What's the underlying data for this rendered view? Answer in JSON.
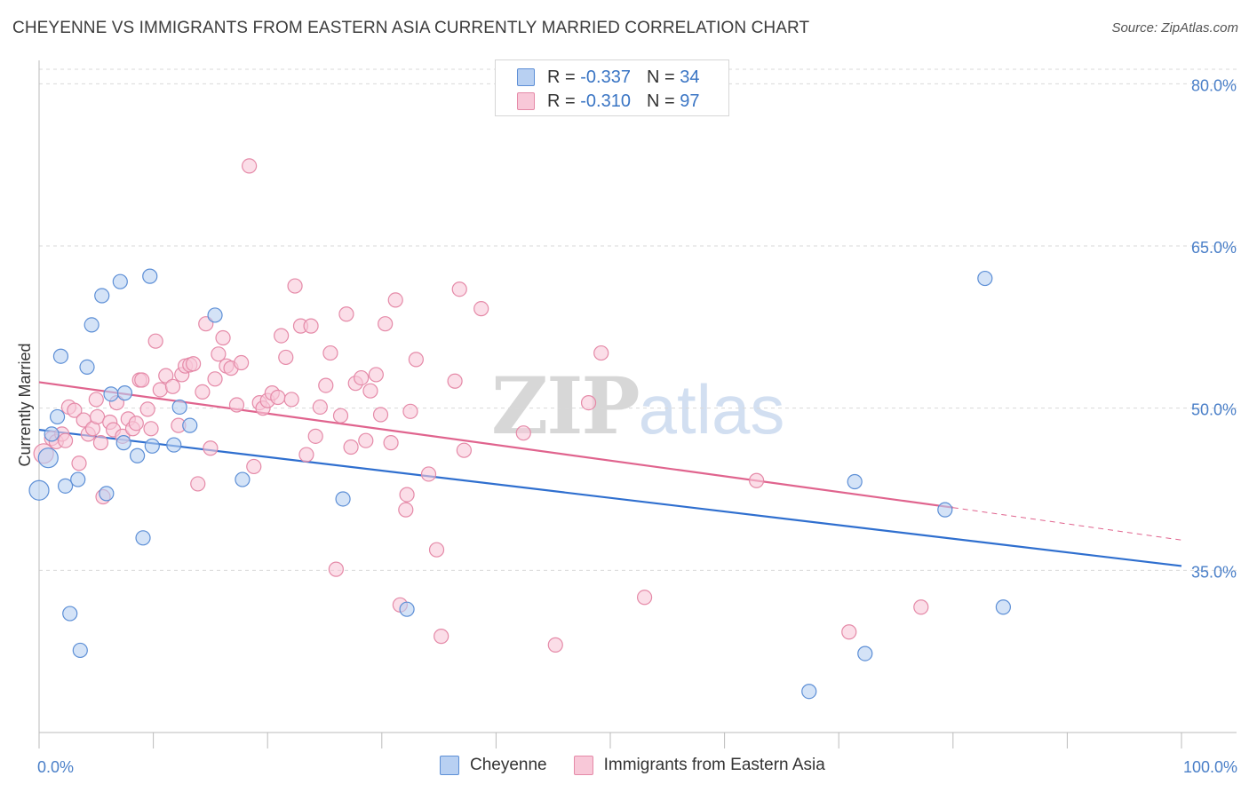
{
  "title": "CHEYENNE VS IMMIGRANTS FROM EASTERN ASIA CURRENTLY MARRIED CORRELATION CHART",
  "source": "Source: ZipAtlas.com",
  "watermark": {
    "zip": "ZIP",
    "atlas": "atlas"
  },
  "legend": {
    "rows": [
      {
        "r_label": "R =",
        "r_value": "-0.337",
        "n_label": "N =",
        "n_value": "34"
      },
      {
        "r_label": "R =",
        "r_value": "-0.310",
        "n_label": "N =",
        "n_value": "97"
      }
    ]
  },
  "colors": {
    "cheyenne_fill": "#b8d0f2",
    "cheyenne_stroke": "#5d8fd6",
    "cheyenne_line": "#2f6fcf",
    "eastasia_fill": "#f8c8d8",
    "eastasia_stroke": "#e58aa8",
    "eastasia_line": "#e0648e",
    "grid": "#d9d9d9",
    "axis": "#bbbbbb",
    "tick_label": "#4a7fc8"
  },
  "chart_data": {
    "type": "scatter",
    "title": "CHEYENNE VS IMMIGRANTS FROM EASTERN ASIA CURRENTLY MARRIED CORRELATION CHART",
    "xlabel": "",
    "ylabel": "Currently Married",
    "xlim": [
      0,
      100
    ],
    "ylim": [
      20,
      82
    ],
    "x_tick_labels": [
      "0.0%",
      "100.0%"
    ],
    "y_ticks": [
      35,
      50,
      65,
      80
    ],
    "y_tick_labels": [
      "35.0%",
      "50.0%",
      "65.0%",
      "80.0%"
    ],
    "grid": true,
    "legend_position": "top-center",
    "series": [
      {
        "name": "Cheyenne",
        "r": -0.337,
        "n": 34,
        "trend": {
          "x": [
            0,
            100
          ],
          "y": [
            48.0,
            35.4
          ]
        },
        "points": [
          [
            0.0,
            42.4
          ],
          [
            0.8,
            45.4
          ],
          [
            1.1,
            47.6
          ],
          [
            1.6,
            49.2
          ],
          [
            1.9,
            54.8
          ],
          [
            2.3,
            42.8
          ],
          [
            2.7,
            31.0
          ],
          [
            3.4,
            43.4
          ],
          [
            3.6,
            27.6
          ],
          [
            4.2,
            53.8
          ],
          [
            4.6,
            57.7
          ],
          [
            5.5,
            60.4
          ],
          [
            5.9,
            42.1
          ],
          [
            6.3,
            51.3
          ],
          [
            7.1,
            61.7
          ],
          [
            7.4,
            46.8
          ],
          [
            7.5,
            51.4
          ],
          [
            8.6,
            45.6
          ],
          [
            9.1,
            38.0
          ],
          [
            9.7,
            62.2
          ],
          [
            9.9,
            46.5
          ],
          [
            11.8,
            46.6
          ],
          [
            12.3,
            50.1
          ],
          [
            13.2,
            48.4
          ],
          [
            15.4,
            58.6
          ],
          [
            17.8,
            43.4
          ],
          [
            26.6,
            41.6
          ],
          [
            32.2,
            31.4
          ],
          [
            67.4,
            23.8
          ],
          [
            71.4,
            43.2
          ],
          [
            72.3,
            27.3
          ],
          [
            79.3,
            40.6
          ],
          [
            82.8,
            62.0
          ],
          [
            84.4,
            31.6
          ]
        ]
      },
      {
        "name": "Immigrants from Eastern Asia",
        "r": -0.31,
        "n": 97,
        "trend": {
          "x": [
            0,
            80
          ],
          "y": [
            52.4,
            40.8
          ]
        },
        "trend_dashed": {
          "x": [
            80,
            100
          ],
          "y": [
            40.8,
            37.8
          ]
        },
        "points": [
          [
            0.4,
            45.8
          ],
          [
            1.1,
            47.2
          ],
          [
            1.5,
            46.9
          ],
          [
            2.0,
            47.6
          ],
          [
            2.3,
            47.0
          ],
          [
            2.6,
            50.1
          ],
          [
            3.1,
            49.8
          ],
          [
            3.5,
            44.9
          ],
          [
            3.9,
            48.9
          ],
          [
            4.3,
            47.6
          ],
          [
            4.7,
            48.1
          ],
          [
            5.0,
            50.8
          ],
          [
            5.1,
            49.2
          ],
          [
            5.4,
            46.8
          ],
          [
            5.6,
            41.8
          ],
          [
            6.2,
            48.7
          ],
          [
            6.5,
            48.0
          ],
          [
            6.8,
            50.5
          ],
          [
            7.3,
            47.4
          ],
          [
            7.8,
            49.0
          ],
          [
            8.2,
            48.1
          ],
          [
            8.5,
            48.6
          ],
          [
            8.8,
            52.6
          ],
          [
            9.0,
            52.6
          ],
          [
            9.5,
            49.9
          ],
          [
            9.8,
            48.1
          ],
          [
            10.2,
            56.2
          ],
          [
            10.6,
            51.7
          ],
          [
            11.1,
            53.0
          ],
          [
            11.7,
            52.0
          ],
          [
            12.2,
            48.4
          ],
          [
            12.5,
            53.1
          ],
          [
            12.8,
            53.9
          ],
          [
            13.2,
            54.0
          ],
          [
            13.5,
            54.1
          ],
          [
            13.9,
            43.0
          ],
          [
            14.3,
            51.5
          ],
          [
            14.6,
            57.8
          ],
          [
            15.0,
            46.3
          ],
          [
            15.4,
            52.7
          ],
          [
            15.7,
            55.0
          ],
          [
            16.1,
            56.5
          ],
          [
            16.4,
            53.9
          ],
          [
            16.8,
            53.7
          ],
          [
            17.3,
            50.3
          ],
          [
            17.7,
            54.2
          ],
          [
            18.4,
            72.4
          ],
          [
            18.8,
            44.6
          ],
          [
            19.3,
            50.5
          ],
          [
            19.6,
            50.0
          ],
          [
            20.0,
            50.7
          ],
          [
            20.4,
            51.4
          ],
          [
            20.9,
            51.0
          ],
          [
            21.2,
            56.7
          ],
          [
            21.6,
            54.7
          ],
          [
            22.1,
            50.8
          ],
          [
            22.4,
            61.3
          ],
          [
            22.9,
            57.6
          ],
          [
            23.4,
            45.7
          ],
          [
            23.8,
            57.6
          ],
          [
            24.2,
            47.4
          ],
          [
            24.6,
            50.1
          ],
          [
            25.1,
            52.1
          ],
          [
            25.5,
            55.1
          ],
          [
            26.0,
            35.1
          ],
          [
            26.4,
            49.3
          ],
          [
            26.9,
            58.7
          ],
          [
            27.3,
            46.4
          ],
          [
            27.7,
            52.3
          ],
          [
            28.2,
            52.8
          ],
          [
            28.6,
            47.0
          ],
          [
            29.0,
            51.6
          ],
          [
            29.5,
            53.1
          ],
          [
            29.9,
            49.4
          ],
          [
            30.3,
            57.8
          ],
          [
            30.8,
            46.8
          ],
          [
            31.2,
            60.0
          ],
          [
            31.6,
            31.8
          ],
          [
            32.1,
            40.6
          ],
          [
            32.2,
            42.0
          ],
          [
            32.5,
            49.7
          ],
          [
            33.0,
            54.5
          ],
          [
            34.1,
            43.9
          ],
          [
            34.8,
            36.9
          ],
          [
            35.2,
            28.9
          ],
          [
            36.4,
            52.5
          ],
          [
            36.8,
            61.0
          ],
          [
            37.2,
            46.1
          ],
          [
            38.7,
            59.2
          ],
          [
            42.4,
            47.7
          ],
          [
            45.2,
            28.1
          ],
          [
            48.1,
            50.5
          ],
          [
            49.2,
            55.1
          ],
          [
            53.0,
            32.5
          ],
          [
            62.8,
            43.3
          ],
          [
            70.9,
            29.3
          ],
          [
            77.2,
            31.6
          ]
        ]
      }
    ]
  }
}
